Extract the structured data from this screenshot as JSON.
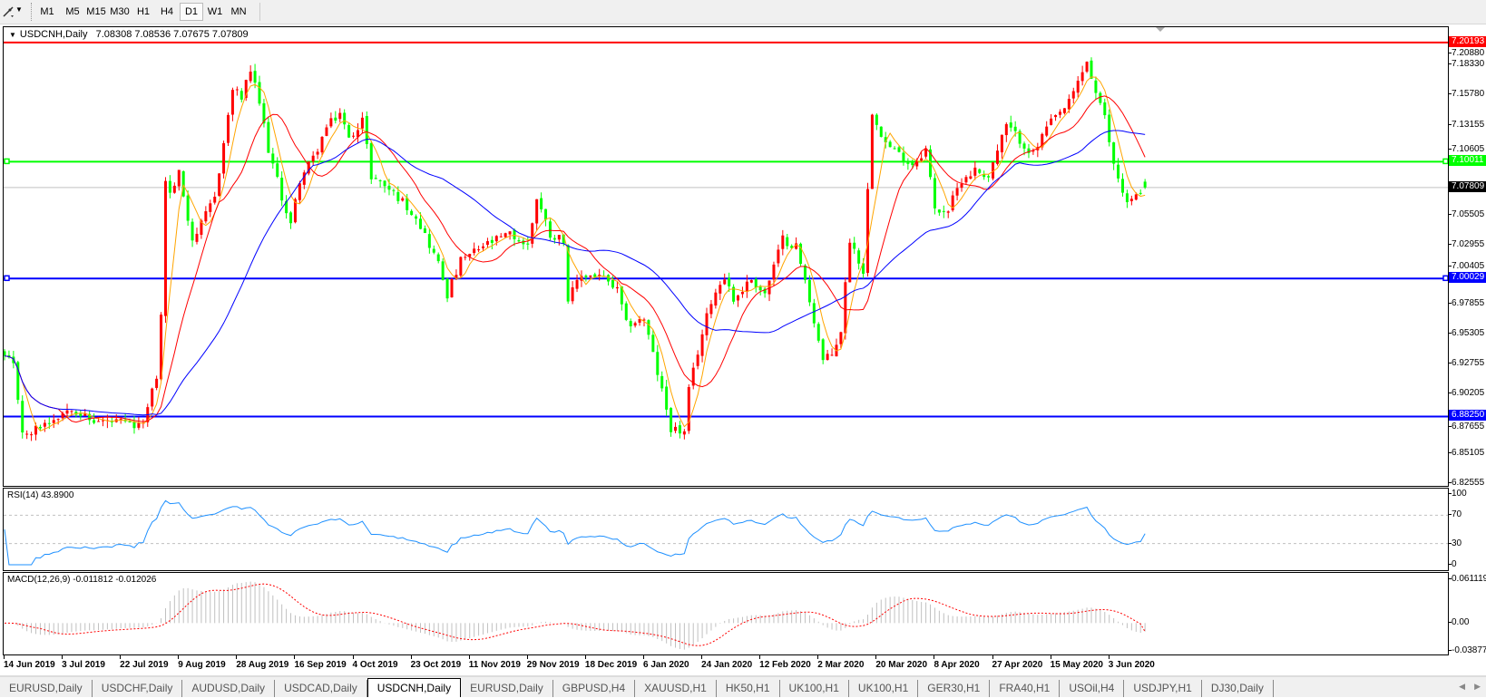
{
  "toolbar": {
    "tool_icon": "line-tool-icon",
    "timeframes": [
      "M1",
      "M5",
      "M15",
      "M30",
      "H1",
      "H4",
      "D1",
      "W1",
      "MN"
    ],
    "active": "D1"
  },
  "chart": {
    "symbol": "USDCNH,Daily",
    "open": "7.08308",
    "high": "7.08536",
    "low": "7.07675",
    "close": "7.07809"
  },
  "colors": {
    "up_candle": "#ff0000",
    "down_candle": "#00ff00",
    "ma_fast": "#ffa500",
    "ma_mid": "#ff0000",
    "ma_slow": "#0000ff",
    "rsi_line": "#1e90ff",
    "macd_hist": "#c0c0c0",
    "macd_signal": "#ff0000"
  },
  "chart_data": [
    {
      "type": "candlestick",
      "ylim": [
        6.82555,
        7.2088
      ],
      "y_ticks": [
        "7.20880",
        "7.18330",
        "7.15780",
        "7.13155",
        "7.10605",
        "7.05505",
        "7.02955",
        "7.00405",
        "6.97855",
        "6.95305",
        "6.92755",
        "6.90205",
        "6.87655",
        "6.85105",
        "6.82555"
      ],
      "x_tick_labels": [
        "14 Jun 2019",
        "3 Jul 2019",
        "22 Jul 2019",
        "9 Aug 2019",
        "28 Aug 2019",
        "16 Sep 2019",
        "4 Oct 2019",
        "23 Oct 2019",
        "11 Nov 2019",
        "29 Nov 2019",
        "18 Dec 2019",
        "6 Jan 2020",
        "24 Jan 2020",
        "12 Feb 2020",
        "2 Mar 2020",
        "20 Mar 2020",
        "8 Apr 2020",
        "27 Apr 2020",
        "15 May 2020",
        "3 Jun 2020"
      ],
      "x_tick_every_bars": 13,
      "close_path": [
        [
          0,
          6.933
        ],
        [
          2,
          6.925
        ],
        [
          4,
          6.871
        ],
        [
          5,
          6.865
        ],
        [
          8,
          6.875
        ],
        [
          11,
          6.881
        ],
        [
          15,
          6.891
        ],
        [
          19,
          6.879
        ],
        [
          26,
          6.877
        ],
        [
          30,
          6.873
        ],
        [
          32,
          6.889
        ],
        [
          34,
          6.917
        ],
        [
          35,
          6.968
        ],
        [
          36,
          7.085
        ],
        [
          37,
          7.072
        ],
        [
          39,
          7.09
        ],
        [
          42,
          7.034
        ],
        [
          44,
          7.046
        ],
        [
          47,
          7.07
        ],
        [
          49,
          7.116
        ],
        [
          51,
          7.162
        ],
        [
          53,
          7.155
        ],
        [
          55,
          7.178
        ],
        [
          57,
          7.15
        ],
        [
          59,
          7.111
        ],
        [
          62,
          7.07
        ],
        [
          64,
          7.046
        ],
        [
          66,
          7.085
        ],
        [
          69,
          7.103
        ],
        [
          72,
          7.129
        ],
        [
          75,
          7.142
        ],
        [
          77,
          7.119
        ],
        [
          80,
          7.137
        ],
        [
          82,
          7.088
        ],
        [
          85,
          7.08
        ],
        [
          88,
          7.07
        ],
        [
          92,
          7.054
        ],
        [
          97,
          7.013
        ],
        [
          99,
          6.987
        ],
        [
          102,
          7.015
        ],
        [
          107,
          7.028
        ],
        [
          113,
          7.038
        ],
        [
          117,
          7.028
        ],
        [
          119,
          7.07
        ],
        [
          122,
          7.038
        ],
        [
          125,
          7.034
        ],
        [
          126,
          6.982
        ],
        [
          129,
          7.003
        ],
        [
          133,
          7.003
        ],
        [
          137,
          6.99
        ],
        [
          139,
          6.961
        ],
        [
          143,
          6.966
        ],
        [
          145,
          6.935
        ],
        [
          147,
          6.904
        ],
        [
          149,
          6.873
        ],
        [
          152,
          6.868
        ],
        [
          153,
          6.904
        ],
        [
          155,
          6.938
        ],
        [
          158,
          6.982
        ],
        [
          161,
          7.003
        ],
        [
          163,
          6.982
        ],
        [
          167,
          7.0
        ],
        [
          170,
          6.987
        ],
        [
          174,
          7.034
        ],
        [
          177,
          7.028
        ],
        [
          180,
          6.982
        ],
        [
          183,
          6.93
        ],
        [
          185,
          6.935
        ],
        [
          187,
          6.956
        ],
        [
          189,
          7.034
        ],
        [
          192,
          7.007
        ],
        [
          194,
          7.144
        ],
        [
          197,
          7.116
        ],
        [
          200,
          7.106
        ],
        [
          203,
          7.098
        ],
        [
          206,
          7.111
        ],
        [
          208,
          7.059
        ],
        [
          211,
          7.059
        ],
        [
          214,
          7.085
        ],
        [
          217,
          7.093
        ],
        [
          220,
          7.088
        ],
        [
          224,
          7.131
        ],
        [
          227,
          7.119
        ],
        [
          230,
          7.106
        ],
        [
          233,
          7.129
        ],
        [
          238,
          7.15
        ],
        [
          242,
          7.186
        ],
        [
          244,
          7.158
        ],
        [
          246,
          7.137
        ],
        [
          248,
          7.098
        ],
        [
          251,
          7.065
        ],
        [
          253,
          7.07
        ],
        [
          255,
          7.07809
        ]
      ],
      "horizontal_lines": [
        {
          "price": 7.20193,
          "label": "7.20193",
          "color": "#ff0000",
          "text_color": "#ffffff",
          "handles": false
        },
        {
          "price": 7.10011,
          "label": "7.10011",
          "color": "#00ff00",
          "text_color": "#ffffff",
          "handles": true
        },
        {
          "price": 7.07809,
          "label": "7.07809",
          "color": "#c0c0c0",
          "tag_color": "#000000",
          "text_color": "#ffffff",
          "handles": false
        },
        {
          "price": 7.00029,
          "label": "7.00029",
          "color": "#0000ff",
          "text_color": "#ffffff",
          "handles": true
        },
        {
          "price": 6.8825,
          "label": "6.88250",
          "color": "#0000ff",
          "text_color": "#ffffff",
          "handles": false
        }
      ]
    },
    {
      "type": "line",
      "title": "RSI(14) 43.8900",
      "ylim": [
        0,
        100
      ],
      "y_ticks": [
        "100",
        "70",
        "30",
        "0"
      ],
      "levels": [
        70,
        30
      ]
    },
    {
      "type": "bar",
      "title": "MACD(12,26,9) -0.011812 -0.012026",
      "ylim": [
        -0.038772,
        0.061119
      ],
      "y_ticks": [
        "0.061119",
        "0.00",
        "-0.038772"
      ],
      "main": -0.011812,
      "signal": -0.012026
    }
  ],
  "tabs": [
    "EURUSD,Daily",
    "USDCHF,Daily",
    "AUDUSD,Daily",
    "USDCAD,Daily",
    "USDCNH,Daily",
    "EURUSD,Daily",
    "GBPUSD,H4",
    "XAUUSD,H1",
    "HK50,H1",
    "UK100,H1",
    "UK100,H1",
    "GER30,H1",
    "FRA40,H1",
    "USOil,H4",
    "USDJPY,H1",
    "DJ30,Daily"
  ],
  "active_tab": "USDCNH,Daily",
  "tab_scroll": {
    "left_icon": "scroll-left-icon",
    "right_icon": "scroll-right-icon"
  }
}
